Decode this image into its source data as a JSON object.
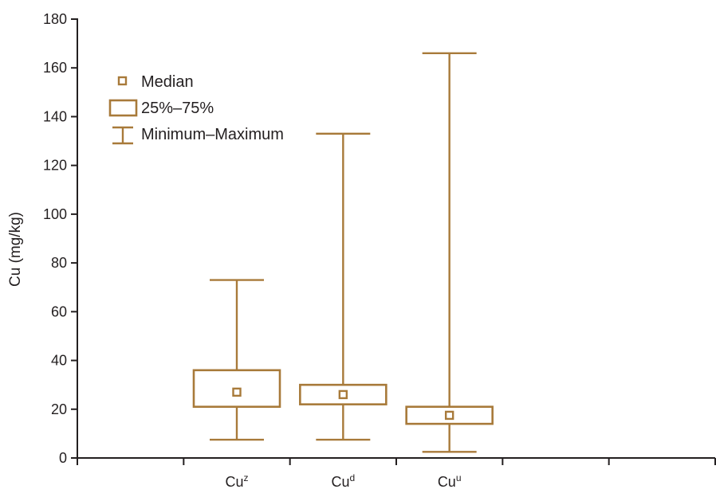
{
  "chart_data": {
    "type": "box",
    "ylabel": "Cu (mg/kg)",
    "xlabel": "",
    "ylim": [
      0,
      180
    ],
    "y_ticks": [
      0,
      20,
      40,
      60,
      80,
      100,
      120,
      140,
      160,
      180
    ],
    "grid": false,
    "legend_position": "top-left",
    "color": "#a87a3a",
    "legend": {
      "median": "Median",
      "box": "25%–75%",
      "range": "Minimum–Maximum"
    },
    "categories": [
      {
        "base": "Cu",
        "sup": "z",
        "min": 7.5,
        "q1": 21,
        "median": 27,
        "q3": 36,
        "max": 73
      },
      {
        "base": "Cu",
        "sup": "d",
        "min": 7.5,
        "q1": 22,
        "median": 26,
        "q3": 30,
        "max": 133
      },
      {
        "base": "Cu",
        "sup": "u",
        "min": 2.5,
        "q1": 14,
        "median": 17.5,
        "q3": 21,
        "max": 166
      }
    ]
  }
}
